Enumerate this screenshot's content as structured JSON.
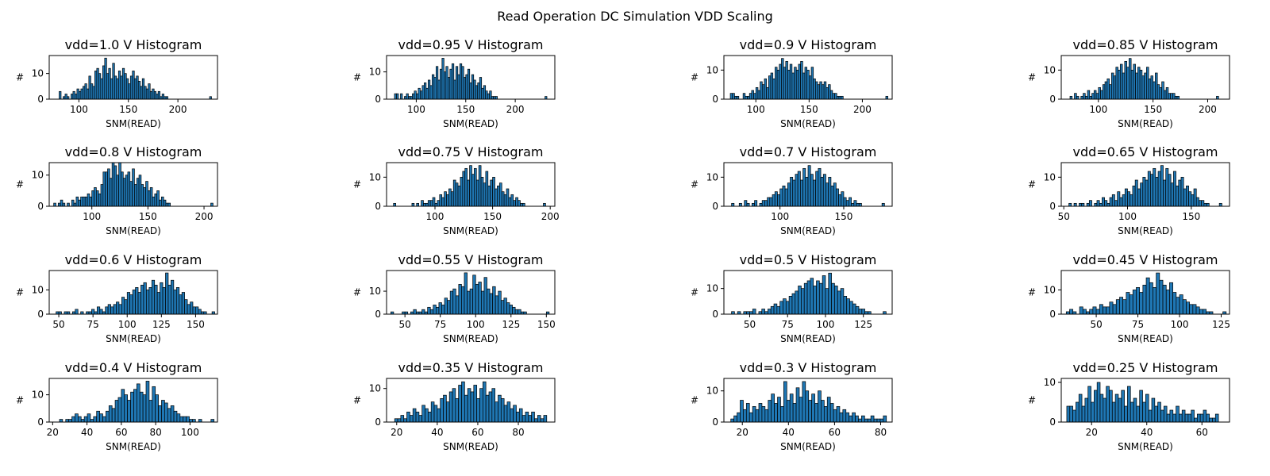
{
  "figure": {
    "title": "Read Operation DC Simulation VDD Scaling"
  },
  "colors": {
    "bar_fill": "#1f77b4",
    "bar_edge": "#000000",
    "background": "#ffffff"
  },
  "chart_data": [
    {
      "type": "bar",
      "title": "vdd=1.0 V Histogram",
      "xlabel": "SNM(READ)",
      "ylabel": "#",
      "xlim": [
        70,
        240
      ],
      "ylim": [
        0,
        17
      ],
      "xticks": [
        100,
        150,
        200
      ],
      "yticks": [
        0,
        10
      ],
      "grid": false,
      "bins_start": 80,
      "bin_width": 2,
      "counts": [
        3,
        0,
        1,
        2,
        1,
        0,
        2,
        3,
        2,
        4,
        3,
        4,
        5,
        6,
        4,
        9,
        6,
        5,
        11,
        12,
        10,
        8,
        13,
        16,
        10,
        12,
        8,
        14,
        9,
        8,
        11,
        9,
        12,
        10,
        8,
        6,
        9,
        11,
        8,
        9,
        7,
        5,
        8,
        5,
        4,
        6,
        3,
        4,
        3,
        2,
        3,
        1,
        2,
        1,
        1,
        0,
        0,
        0,
        0,
        0,
        0,
        0,
        0,
        0,
        0,
        0,
        0,
        0,
        0,
        0,
        0,
        0,
        0,
        0,
        0,
        0,
        1
      ]
    },
    {
      "type": "bar",
      "title": "vdd=0.95 V Histogram",
      "xlabel": "SNM(READ)",
      "ylabel": "#",
      "xlim": [
        70,
        240
      ],
      "ylim": [
        0,
        16
      ],
      "xticks": [
        100,
        150,
        200
      ],
      "yticks": [
        0,
        10
      ],
      "grid": false,
      "bins_start": 78,
      "bin_width": 2,
      "counts": [
        2,
        2,
        0,
        2,
        0,
        1,
        2,
        1,
        1,
        2,
        3,
        2,
        4,
        3,
        5,
        6,
        4,
        7,
        5,
        9,
        8,
        12,
        7,
        11,
        15,
        10,
        12,
        8,
        11,
        13,
        7,
        12,
        9,
        13,
        12,
        8,
        9,
        11,
        6,
        9,
        7,
        5,
        6,
        8,
        4,
        5,
        3,
        2,
        3,
        1,
        1,
        1,
        0,
        0,
        0,
        0,
        0,
        0,
        0,
        0,
        0,
        0,
        0,
        0,
        0,
        0,
        0,
        0,
        0,
        0,
        0,
        0,
        0,
        0,
        0,
        0,
        1
      ]
    },
    {
      "type": "bar",
      "title": "vdd=0.9 V Histogram",
      "xlabel": "SNM(READ)",
      "ylabel": "#",
      "xlim": [
        70,
        228
      ],
      "ylim": [
        0,
        15
      ],
      "xticks": [
        100,
        150,
        200
      ],
      "yticks": [
        0,
        10
      ],
      "grid": false,
      "bins_start": 76,
      "bin_width": 2,
      "counts": [
        2,
        2,
        1,
        1,
        0,
        0,
        2,
        1,
        1,
        2,
        3,
        2,
        4,
        3,
        6,
        5,
        7,
        4,
        8,
        9,
        7,
        11,
        10,
        12,
        14,
        11,
        13,
        10,
        12,
        9,
        11,
        10,
        12,
        13,
        9,
        11,
        10,
        8,
        11,
        7,
        6,
        5,
        6,
        5,
        6,
        4,
        5,
        3,
        2,
        2,
        1,
        1,
        1,
        0,
        0,
        0,
        0,
        0,
        0,
        0,
        0,
        0,
        0,
        0,
        0,
        0,
        0,
        0,
        0,
        0,
        0,
        0,
        0,
        1
      ]
    },
    {
      "type": "bar",
      "title": "vdd=0.85 V Histogram",
      "xlabel": "SNM(READ)",
      "ylabel": "#",
      "xlim": [
        66,
        220
      ],
      "ylim": [
        0,
        15
      ],
      "xticks": [
        100,
        150,
        200
      ],
      "yticks": [
        0,
        10
      ],
      "grid": false,
      "bins_start": 74,
      "bin_width": 2,
      "counts": [
        1,
        0,
        2,
        1,
        0,
        1,
        2,
        1,
        3,
        1,
        2,
        3,
        2,
        4,
        3,
        5,
        6,
        7,
        5,
        9,
        8,
        11,
        10,
        12,
        9,
        13,
        11,
        14,
        10,
        12,
        9,
        11,
        10,
        8,
        9,
        11,
        7,
        8,
        6,
        9,
        5,
        4,
        6,
        3,
        4,
        2,
        2,
        2,
        1,
        1,
        0,
        0,
        0,
        0,
        0,
        0,
        0,
        0,
        0,
        0,
        0,
        0,
        0,
        0,
        0,
        0,
        0,
        1
      ]
    },
    {
      "type": "bar",
      "title": "vdd=0.8 V Histogram",
      "xlabel": "SNM(READ)",
      "ylabel": "#",
      "xlim": [
        62,
        212
      ],
      "ylim": [
        0,
        14
      ],
      "xticks": [
        100,
        150,
        200
      ],
      "yticks": [
        0,
        10
      ],
      "grid": false,
      "bins_start": 66,
      "bin_width": 2,
      "counts": [
        1,
        0,
        1,
        2,
        1,
        0,
        1,
        0,
        2,
        1,
        3,
        2,
        3,
        3,
        3,
        4,
        3,
        5,
        6,
        5,
        4,
        7,
        11,
        11,
        12,
        9,
        14,
        13,
        10,
        14,
        11,
        9,
        10,
        11,
        8,
        12,
        7,
        9,
        10,
        7,
        6,
        8,
        5,
        6,
        3,
        4,
        5,
        2,
        3,
        2,
        1,
        1,
        0,
        0,
        0,
        0,
        0,
        0,
        0,
        0,
        0,
        0,
        0,
        0,
        0,
        0,
        0,
        0,
        0,
        0,
        1
      ]
    },
    {
      "type": "bar",
      "title": "vdd=0.75 V Histogram",
      "xlabel": "SNM(READ)",
      "ylabel": "#",
      "xlim": [
        58,
        204
      ],
      "ylim": [
        0,
        15
      ],
      "xticks": [
        100,
        150,
        200
      ],
      "yticks": [
        0,
        10
      ],
      "grid": false,
      "bins_start": 64,
      "bin_width": 2,
      "counts": [
        1,
        0,
        0,
        0,
        0,
        0,
        0,
        0,
        1,
        0,
        1,
        0,
        2,
        1,
        1,
        2,
        2,
        3,
        1,
        2,
        4,
        3,
        5,
        4,
        6,
        5,
        9,
        8,
        7,
        10,
        12,
        13,
        9,
        14,
        11,
        13,
        9,
        14,
        10,
        8,
        12,
        7,
        9,
        10,
        6,
        7,
        8,
        5,
        4,
        6,
        3,
        4,
        2,
        3,
        2,
        1,
        1,
        0,
        0,
        0,
        0,
        0,
        0,
        0,
        0,
        1
      ]
    },
    {
      "type": "bar",
      "title": "vdd=0.7 V Histogram",
      "xlabel": "SNM(READ)",
      "ylabel": "#",
      "xlim": [
        56,
        188
      ],
      "ylim": [
        0,
        15
      ],
      "xticks": [
        100,
        150
      ],
      "yticks": [
        0,
        10
      ],
      "grid": false,
      "bins_start": 62,
      "bin_width": 2,
      "counts": [
        1,
        0,
        0,
        1,
        0,
        2,
        1,
        0,
        1,
        2,
        0,
        1,
        2,
        2,
        3,
        3,
        4,
        5,
        4,
        6,
        7,
        6,
        8,
        10,
        9,
        11,
        12,
        9,
        13,
        10,
        14,
        11,
        9,
        12,
        13,
        10,
        11,
        8,
        10,
        7,
        8,
        6,
        4,
        5,
        3,
        2,
        3,
        1,
        2,
        1,
        1,
        0,
        0,
        0,
        0,
        0,
        0,
        0,
        0,
        1
      ]
    },
    {
      "type": "bar",
      "title": "vdd=0.65 V Histogram",
      "xlabel": "SNM(READ)",
      "ylabel": "#",
      "xlim": [
        48,
        180
      ],
      "ylim": [
        0,
        15
      ],
      "xticks": [
        50,
        100,
        150
      ],
      "yticks": [
        0,
        10
      ],
      "grid": false,
      "bins_start": 54,
      "bin_width": 2,
      "counts": [
        1,
        0,
        1,
        0,
        1,
        1,
        0,
        1,
        2,
        0,
        1,
        2,
        1,
        3,
        2,
        1,
        3,
        4,
        2,
        5,
        3,
        4,
        6,
        5,
        4,
        7,
        9,
        6,
        8,
        10,
        9,
        12,
        11,
        13,
        10,
        12,
        14,
        9,
        13,
        11,
        8,
        12,
        7,
        9,
        10,
        6,
        7,
        5,
        4,
        6,
        3,
        2,
        2,
        1,
        1,
        0,
        0,
        0,
        0,
        1
      ]
    },
    {
      "type": "bar",
      "title": "vdd=0.6 V Histogram",
      "xlabel": "SNM(READ)",
      "ylabel": "#",
      "xlim": [
        43,
        166
      ],
      "ylim": [
        0,
        18
      ],
      "xticks": [
        50,
        75,
        100,
        125,
        150
      ],
      "yticks": [
        0,
        10
      ],
      "grid": false,
      "bins_start": 48,
      "bin_width": 2,
      "counts": [
        1,
        1,
        0,
        1,
        1,
        0,
        1,
        2,
        0,
        1,
        0,
        1,
        1,
        2,
        1,
        3,
        2,
        1,
        3,
        4,
        3,
        4,
        5,
        4,
        7,
        6,
        9,
        8,
        10,
        11,
        9,
        12,
        13,
        10,
        11,
        14,
        12,
        9,
        13,
        11,
        17,
        12,
        14,
        10,
        11,
        8,
        9,
        6,
        4,
        5,
        3,
        3,
        2,
        1,
        1,
        0,
        0,
        1
      ]
    },
    {
      "type": "bar",
      "title": "vdd=0.55 V Histogram",
      "xlabel": "SNM(READ)",
      "ylabel": "#",
      "xlim": [
        37,
        156
      ],
      "ylim": [
        0,
        19
      ],
      "xticks": [
        50,
        75,
        100,
        125,
        150
      ],
      "yticks": [
        0,
        10
      ],
      "grid": false,
      "bins_start": 40,
      "bin_width": 2,
      "counts": [
        1,
        0,
        0,
        0,
        1,
        1,
        0,
        1,
        2,
        1,
        1,
        2,
        1,
        3,
        2,
        4,
        3,
        5,
        4,
        7,
        6,
        10,
        11,
        8,
        13,
        12,
        18,
        10,
        11,
        17,
        13,
        14,
        10,
        16,
        11,
        9,
        12,
        8,
        10,
        6,
        7,
        5,
        4,
        3,
        2,
        2,
        1,
        1,
        0,
        0,
        0,
        0,
        0,
        0,
        0,
        1
      ]
    },
    {
      "type": "bar",
      "title": "vdd=0.5 V Histogram",
      "xlabel": "SNM(READ)",
      "ylabel": "#",
      "xlim": [
        33,
        144
      ],
      "ylim": [
        0,
        17
      ],
      "xticks": [
        50,
        75,
        100,
        125
      ],
      "yticks": [
        0,
        10
      ],
      "grid": false,
      "bins_start": 38,
      "bin_width": 2,
      "counts": [
        1,
        0,
        1,
        0,
        1,
        1,
        1,
        2,
        0,
        1,
        2,
        1,
        2,
        3,
        4,
        3,
        5,
        6,
        5,
        7,
        8,
        9,
        11,
        10,
        12,
        13,
        14,
        11,
        13,
        12,
        15,
        10,
        16,
        12,
        11,
        9,
        10,
        7,
        6,
        5,
        4,
        3,
        2,
        2,
        1,
        1,
        0,
        0,
        0,
        0,
        1
      ]
    },
    {
      "type": "bar",
      "title": "vdd=0.45 V Histogram",
      "xlabel": "SNM(READ)",
      "ylabel": "#",
      "xlim": [
        29,
        130
      ],
      "ylim": [
        0,
        18
      ],
      "xticks": [
        50,
        75,
        100,
        125
      ],
      "yticks": [
        0,
        10
      ],
      "grid": false,
      "bins_start": 32,
      "bin_width": 2,
      "counts": [
        1,
        2,
        1,
        0,
        3,
        2,
        1,
        2,
        3,
        2,
        4,
        3,
        3,
        5,
        4,
        6,
        7,
        6,
        9,
        8,
        10,
        11,
        9,
        12,
        15,
        13,
        11,
        17,
        14,
        12,
        10,
        13,
        9,
        7,
        8,
        6,
        5,
        4,
        4,
        3,
        2,
        2,
        1,
        1,
        0,
        0,
        0,
        1
      ]
    },
    {
      "type": "bar",
      "title": "vdd=0.4 V Histogram",
      "xlabel": "SNM(READ)",
      "ylabel": "#",
      "xlim": [
        18,
        116
      ],
      "ylim": [
        0,
        16
      ],
      "xticks": [
        20,
        40,
        60,
        80,
        100
      ],
      "yticks": [
        0,
        10
      ],
      "grid": false,
      "bins_start": 24,
      "bin_width": 1.8,
      "counts": [
        1,
        0,
        1,
        1,
        2,
        3,
        2,
        1,
        2,
        3,
        1,
        2,
        4,
        3,
        2,
        4,
        6,
        5,
        8,
        9,
        12,
        10,
        8,
        11,
        12,
        14,
        11,
        10,
        15,
        8,
        13,
        10,
        6,
        8,
        7,
        5,
        6,
        4,
        3,
        2,
        2,
        2,
        1,
        1,
        0,
        1,
        0,
        0,
        0,
        1
      ]
    },
    {
      "type": "bar",
      "title": "vdd=0.35 V Histogram",
      "xlabel": "SNM(READ)",
      "ylabel": "#",
      "xlim": [
        15,
        98
      ],
      "ylim": [
        0,
        13
      ],
      "xticks": [
        20,
        40,
        60,
        80
      ],
      "yticks": [
        0,
        10
      ],
      "grid": false,
      "bins_start": 19,
      "bin_width": 1.5,
      "counts": [
        1,
        1,
        2,
        1,
        3,
        2,
        4,
        3,
        2,
        5,
        4,
        3,
        6,
        5,
        4,
        7,
        8,
        6,
        9,
        10,
        7,
        11,
        12,
        8,
        10,
        9,
        11,
        7,
        10,
        12,
        8,
        9,
        10,
        6,
        8,
        7,
        5,
        6,
        4,
        5,
        3,
        4,
        2,
        3,
        2,
        3,
        1,
        2,
        1,
        2
      ]
    },
    {
      "type": "bar",
      "title": "vdd=0.3 V Histogram",
      "xlabel": "SNM(READ)",
      "ylabel": "#",
      "xlim": [
        12,
        85
      ],
      "ylim": [
        0,
        14
      ],
      "xticks": [
        20,
        40,
        60,
        80
      ],
      "yticks": [
        0,
        10
      ],
      "grid": false,
      "bins_start": 15,
      "bin_width": 1.35,
      "counts": [
        1,
        2,
        3,
        7,
        4,
        6,
        3,
        5,
        4,
        6,
        5,
        4,
        7,
        9,
        6,
        8,
        5,
        13,
        7,
        9,
        6,
        11,
        8,
        13,
        10,
        7,
        9,
        6,
        10,
        7,
        5,
        8,
        6,
        4,
        5,
        3,
        4,
        3,
        2,
        3,
        2,
        1,
        2,
        1,
        1,
        2,
        1,
        1,
        1,
        2
      ]
    },
    {
      "type": "bar",
      "title": "vdd=0.25 V Histogram",
      "xlabel": "SNM(READ)",
      "ylabel": "#",
      "xlim": [
        9,
        70
      ],
      "ylim": [
        0,
        11
      ],
      "xticks": [
        20,
        40,
        60
      ],
      "yticks": [
        0,
        10
      ],
      "grid": false,
      "bins_start": 11,
      "bin_width": 1.1,
      "counts": [
        4,
        4,
        3,
        5,
        7,
        4,
        6,
        9,
        5,
        8,
        10,
        7,
        6,
        9,
        8,
        5,
        7,
        6,
        8,
        4,
        9,
        5,
        6,
        4,
        8,
        5,
        7,
        3,
        6,
        4,
        5,
        3,
        4,
        2,
        3,
        2,
        4,
        2,
        3,
        2,
        2,
        3,
        1,
        2,
        2,
        3,
        2,
        1,
        1,
        2
      ]
    }
  ]
}
